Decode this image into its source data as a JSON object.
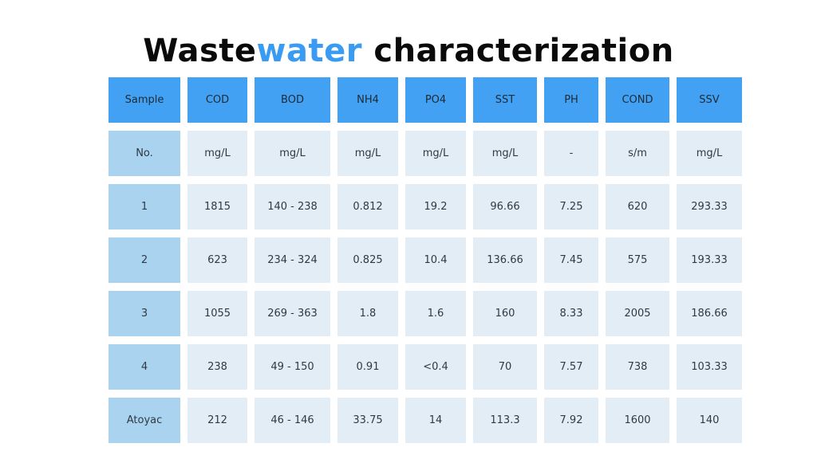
{
  "title": {
    "part1": "Waste",
    "part2": "water",
    "part3": " characterization"
  },
  "accent_color": "#3a9bf2",
  "header_color": "#42a1f3",
  "table": {
    "columns": [
      "Sample",
      "COD",
      "BOD",
      "NH4",
      "PO4",
      "SST",
      "PH",
      "COND",
      "SSV"
    ],
    "units": [
      "No.",
      "mg/L",
      "mg/L",
      "mg/L",
      "mg/L",
      "mg/L",
      "-",
      "s/m",
      "mg/L"
    ],
    "rows": [
      [
        "1",
        "1815",
        "140 - 238",
        "0.812",
        "19.2",
        "96.66",
        "7.25",
        "620",
        "293.33"
      ],
      [
        "2",
        "623",
        "234 - 324",
        "0.825",
        "10.4",
        "136.66",
        "7.45",
        "575",
        "193.33"
      ],
      [
        "3",
        "1055",
        "269 - 363",
        "1.8",
        "1.6",
        "160",
        "8.33",
        "2005",
        "186.66"
      ],
      [
        "4",
        "238",
        "49 - 150",
        "0.91",
        "<0.4",
        "70",
        "7.57",
        "738",
        "103.33"
      ],
      [
        "Atoyac",
        "212",
        "46 - 146",
        "33.75",
        "14",
        "113.3",
        "7.92",
        "1600",
        "140"
      ]
    ]
  }
}
